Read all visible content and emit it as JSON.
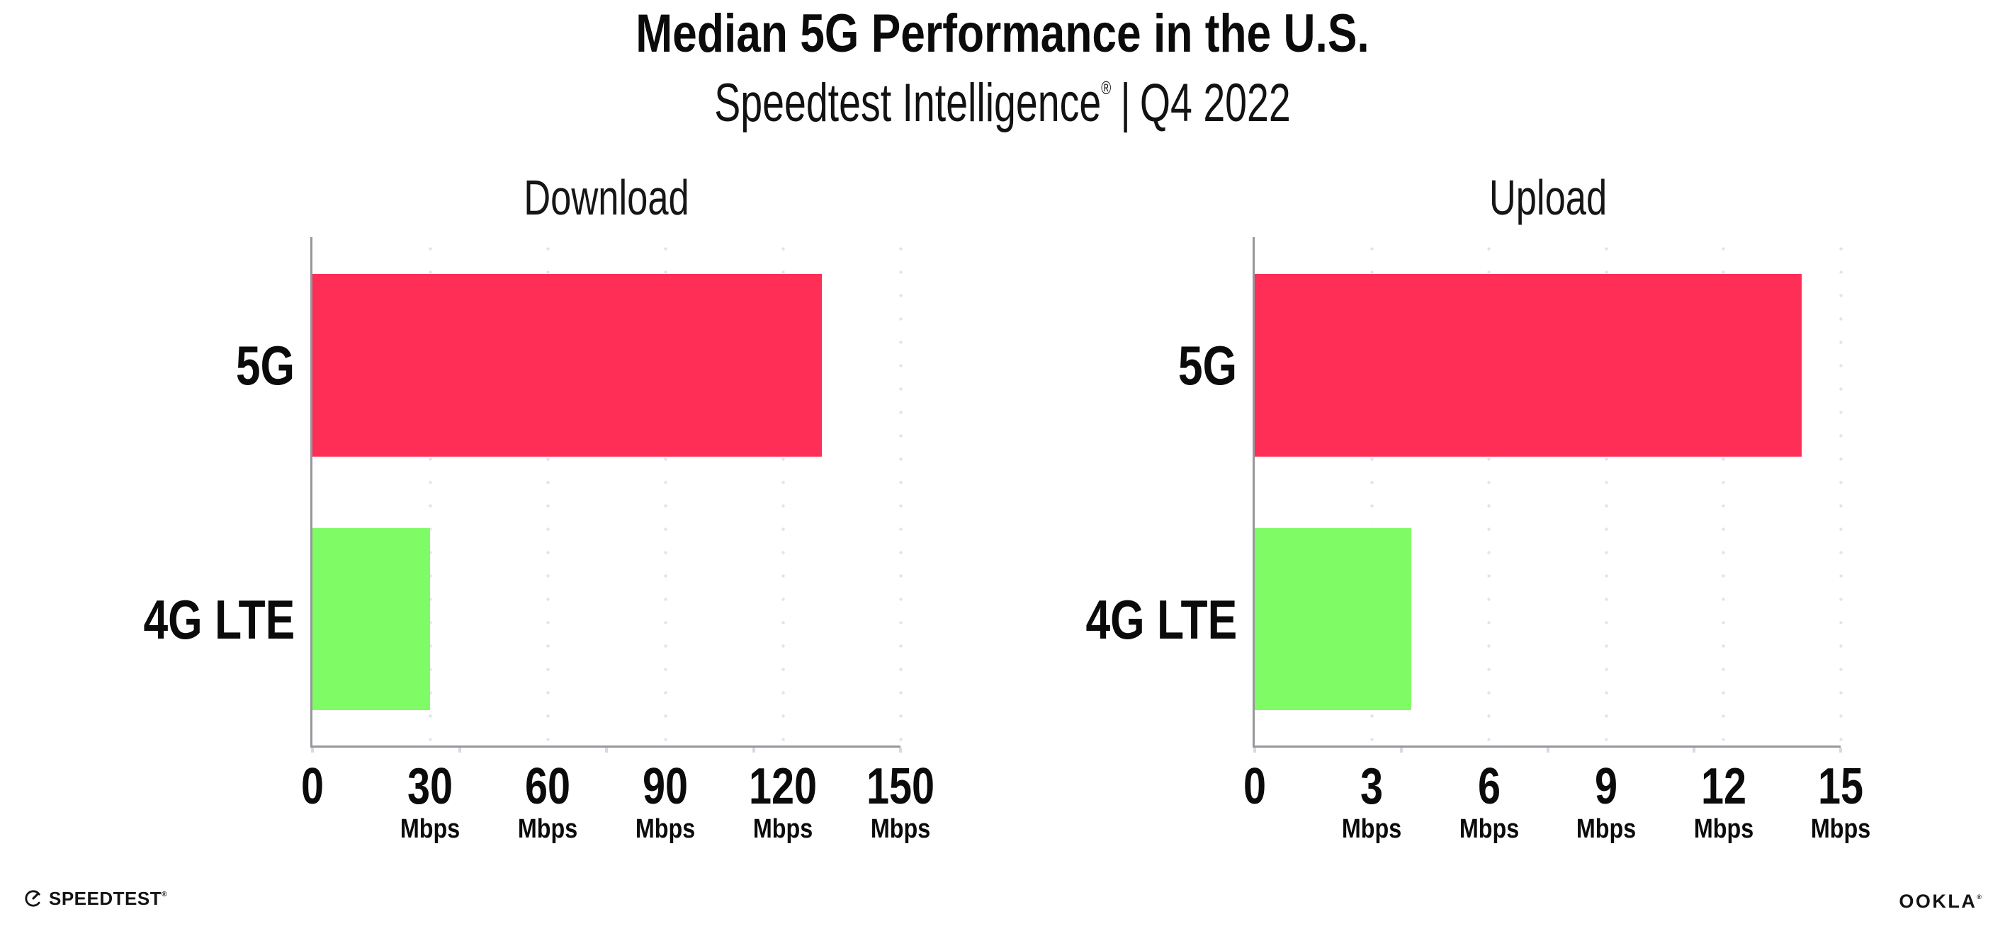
{
  "header": {
    "title": "Median 5G Performance in the U.S.",
    "subtitle": {
      "brand": "Speedtest Intelligence",
      "registered": "®",
      "separator": "|",
      "period": "Q4 2022"
    }
  },
  "colors": {
    "bar_5g": "#FF2E56",
    "bar_4g_lte": "#7FFB66",
    "grid_dot": "#E3E3ED",
    "axis": "#96969C",
    "text": "#0B0B0B"
  },
  "chart_data": [
    {
      "type": "bar",
      "orientation": "horizontal",
      "title": "Download",
      "unit": "Mbps",
      "categories": [
        "5G",
        "4G LTE"
      ],
      "values": [
        130,
        30
      ],
      "series_colors": [
        "#FF2E56",
        "#7FFB66"
      ],
      "xlim": [
        0,
        150
      ],
      "xticks": [
        0,
        30,
        60,
        90,
        120,
        150
      ],
      "grid": "vertical-dotted",
      "legend": "none"
    },
    {
      "type": "bar",
      "orientation": "horizontal",
      "title": "Upload",
      "unit": "Mbps",
      "categories": [
        "5G",
        "4G LTE"
      ],
      "values": [
        14,
        4
      ],
      "series_colors": [
        "#FF2E56",
        "#7FFB66"
      ],
      "xlim": [
        0,
        15
      ],
      "xticks": [
        0,
        3,
        6,
        9,
        12,
        15
      ],
      "grid": "vertical-dotted",
      "legend": "none"
    }
  ],
  "footer": {
    "speedtest": {
      "label": "SPEEDTEST",
      "registered": "®"
    },
    "ookla": {
      "label": "OOKLA",
      "registered": "®"
    }
  }
}
